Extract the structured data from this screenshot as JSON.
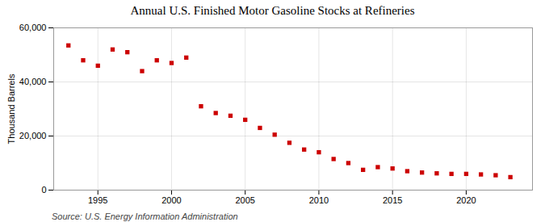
{
  "chart_data": {
    "type": "scatter",
    "title": "Annual U.S. Finished Motor Gasoline Stocks at Refineries",
    "ylabel": "Thousand Barrels",
    "source": "Source: U.S. Energy Information Administration",
    "x": [
      1993,
      1994,
      1995,
      1996,
      1997,
      1998,
      1999,
      2000,
      2001,
      2002,
      2003,
      2004,
      2005,
      2006,
      2007,
      2008,
      2009,
      2010,
      2011,
      2012,
      2013,
      2014,
      2015,
      2016,
      2017,
      2018,
      2019,
      2020,
      2021,
      2022,
      2023
    ],
    "values": [
      53500,
      48000,
      46000,
      52000,
      51000,
      44000,
      48000,
      47000,
      49000,
      31000,
      28500,
      27500,
      26000,
      23000,
      20500,
      17500,
      15000,
      14000,
      11500,
      10000,
      7500,
      8500,
      8000,
      7000,
      6500,
      6200,
      6000,
      6000,
      5800,
      5500,
      4800
    ],
    "color": "#cc0000",
    "marker": "square",
    "xlim": [
      1992.0,
      2024.5
    ],
    "xticks": [
      1995,
      2000,
      2005,
      2010,
      2015,
      2020
    ],
    "ylim": [
      0,
      60000
    ],
    "yticks": [
      0,
      {
        "value": 20000,
        "label": "20,000"
      },
      {
        "value": 40000,
        "label": "40,000"
      },
      {
        "value": 60000,
        "label": "60,000"
      }
    ],
    "grid": true
  }
}
